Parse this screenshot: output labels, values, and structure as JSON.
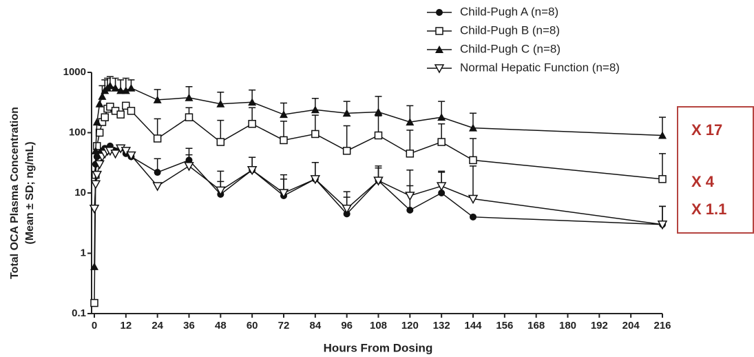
{
  "chart_data": {
    "type": "line",
    "y_label": [
      "Total OCA Plasma Concentration",
      "(Mean ± SD; ng/mL)"
    ],
    "x_label": "Hours From Dosing",
    "x": [
      0,
      0.5,
      1,
      2,
      3,
      4,
      5,
      6,
      8,
      10,
      12,
      14,
      24,
      36,
      48,
      60,
      72,
      84,
      96,
      108,
      120,
      132,
      144,
      216
    ],
    "series": [
      {
        "name": "Child-Pugh A (n=8)",
        "color": "#111111",
        "marker": "circle",
        "values": [
          20,
          30,
          40,
          45,
          50,
          55,
          50,
          60,
          50,
          55,
          45,
          40,
          22,
          35,
          9.5,
          24,
          9,
          17,
          4.5,
          16,
          5.2,
          10,
          4,
          3
        ],
        "errors": [
          null,
          null,
          null,
          null,
          null,
          null,
          null,
          null,
          null,
          null,
          null,
          null,
          15,
          20,
          6,
          15,
          8,
          15,
          4,
          10,
          8,
          12,
          null,
          3
        ]
      },
      {
        "name": "Child-Pugh B (n=8)",
        "color": "#111111",
        "marker": "square",
        "values": [
          0.15,
          20,
          60,
          100,
          150,
          180,
          250,
          270,
          230,
          200,
          280,
          230,
          80,
          180,
          70,
          140,
          75,
          95,
          50,
          90,
          45,
          70,
          35,
          17
        ],
        "errors": [
          null,
          null,
          null,
          null,
          null,
          null,
          null,
          null,
          null,
          null,
          null,
          null,
          90,
          80,
          90,
          120,
          80,
          100,
          80,
          100,
          65,
          70,
          45,
          28
        ]
      },
      {
        "name": "Child-Pugh C (n=8)",
        "color": "#111111",
        "marker": "triangle",
        "values": [
          0.6,
          50,
          150,
          300,
          400,
          500,
          550,
          600,
          550,
          500,
          500,
          550,
          350,
          380,
          300,
          320,
          200,
          240,
          210,
          220,
          150,
          180,
          120,
          90
        ],
        "errors": [
          null,
          null,
          null,
          null,
          200,
          250,
          250,
          250,
          250,
          250,
          300,
          200,
          170,
          200,
          170,
          190,
          110,
          130,
          120,
          180,
          130,
          150,
          90,
          90
        ]
      },
      {
        "name": "Normal Hepatic Function (n=8)",
        "color": "#111111",
        "marker": "triangle-down",
        "values": [
          5.5,
          14,
          20,
          30,
          40,
          45,
          50,
          50,
          45,
          55,
          50,
          42,
          13,
          28,
          11,
          24,
          10,
          17,
          5.5,
          16,
          9,
          13,
          8,
          3
        ],
        "errors": [
          null,
          null,
          null,
          null,
          null,
          null,
          null,
          null,
          null,
          null,
          null,
          null,
          null,
          15,
          12,
          15,
          10,
          15,
          5,
          12,
          15,
          10,
          20,
          3
        ]
      }
    ],
    "xlim": [
      0,
      216
    ],
    "xticks": [
      0,
      12,
      24,
      36,
      48,
      60,
      72,
      84,
      96,
      108,
      120,
      132,
      144,
      156,
      168,
      180,
      192,
      204,
      216
    ],
    "ylim": [
      0.1,
      1000
    ],
    "yticks": [
      0.1,
      1,
      10,
      100,
      1000
    ],
    "y_log": true,
    "annotations": [
      "X 17",
      "X 4",
      "X 1.1"
    ],
    "annotation_color": "#b5312c"
  }
}
